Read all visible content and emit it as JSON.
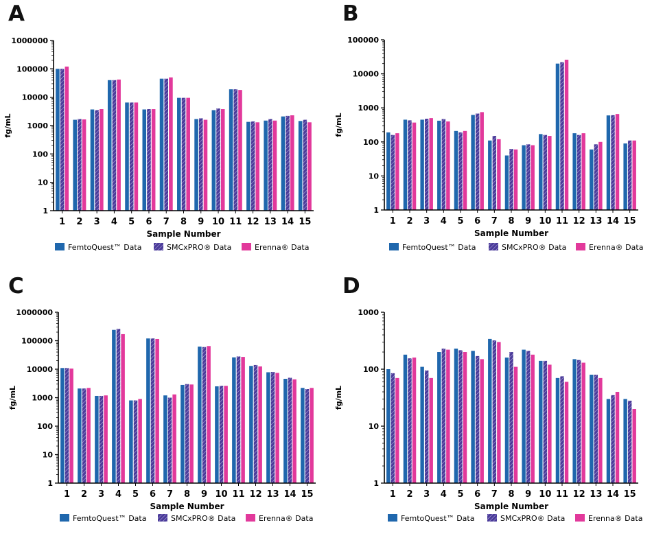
{
  "colors": {
    "femtoquest": "#1f67ad",
    "smcxpro": "#4b3b9a",
    "erenna": "#e2399b"
  },
  "chart_data": [
    {
      "panel": "A",
      "type": "bar",
      "yscale": "log",
      "ylim": [
        1,
        1000000
      ],
      "yticks": [
        "1",
        "10",
        "100",
        "1000",
        "10000",
        "100000",
        "1000000"
      ],
      "ylabel": "fg/mL",
      "xlabel": "Sample Number",
      "categories": [
        "1",
        "2",
        "3",
        "4",
        "5",
        "6",
        "7",
        "8",
        "9",
        "10",
        "11",
        "12",
        "13",
        "14",
        "15"
      ],
      "series": [
        {
          "name": "FemtoQuest™ Data",
          "values": [
            100000,
            1600,
            3700,
            40000,
            6500,
            3700,
            45000,
            9500,
            1700,
            3500,
            19000,
            1350,
            1500,
            2100,
            1450
          ]
        },
        {
          "name": "SMCxPRO® Data",
          "values": [
            100000,
            1700,
            3500,
            40000,
            6500,
            3800,
            45000,
            9500,
            1800,
            4000,
            19000,
            1400,
            1700,
            2200,
            1600
          ]
        },
        {
          "name": "Erenna® Data",
          "values": [
            120000,
            1650,
            3800,
            42000,
            6500,
            3800,
            50000,
            9500,
            1600,
            3800,
            18000,
            1300,
            1500,
            2300,
            1300
          ]
        }
      ]
    },
    {
      "panel": "B",
      "type": "bar",
      "yscale": "log",
      "ylim": [
        1,
        100000
      ],
      "yticks": [
        "1",
        "10",
        "100",
        "1000",
        "10000",
        "100000"
      ],
      "ylabel": "fg/mL",
      "xlabel": "Sample Number",
      "categories": [
        "1",
        "2",
        "3",
        "4",
        "5",
        "6",
        "7",
        "8",
        "9",
        "10",
        "11",
        "12",
        "13",
        "14",
        "15"
      ],
      "series": [
        {
          "name": "FemtoQuest™ Data",
          "values": [
            190,
            450,
            450,
            420,
            210,
            620,
            110,
            40,
            80,
            170,
            20000,
            180,
            60,
            600,
            90
          ]
        },
        {
          "name": "SMCxPRO® Data",
          "values": [
            160,
            430,
            480,
            470,
            190,
            680,
            150,
            62,
            85,
            160,
            22000,
            160,
            85,
            610,
            110
          ]
        },
        {
          "name": "Erenna® Data",
          "values": [
            180,
            370,
            500,
            400,
            210,
            750,
            120,
            60,
            80,
            150,
            26000,
            180,
            100,
            660,
            110
          ]
        }
      ]
    },
    {
      "panel": "C",
      "type": "bar",
      "yscale": "log",
      "ylim": [
        1,
        1000000
      ],
      "yticks": [
        "1",
        "10",
        "100",
        "1000",
        "10000",
        "100000",
        "1000000"
      ],
      "ylabel": "fg/mL",
      "xlabel": "Sample Number",
      "categories": [
        "1",
        "2",
        "3",
        "4",
        "5",
        "6",
        "7",
        "8",
        "9",
        "10",
        "11",
        "12",
        "13",
        "14",
        "15"
      ],
      "series": [
        {
          "name": "FemtoQuest™ Data",
          "values": [
            11000,
            2100,
            1150,
            240000,
            800,
            120000,
            1200,
            2800,
            62000,
            2500,
            26000,
            13000,
            7800,
            4600,
            2200
          ]
        },
        {
          "name": "SMCxPRO® Data",
          "values": [
            11000,
            2100,
            1150,
            260000,
            800,
            120000,
            1000,
            3000,
            60000,
            2600,
            28000,
            14000,
            8000,
            5000,
            2000
          ]
        },
        {
          "name": "Erenna® Data",
          "values": [
            10500,
            2200,
            1200,
            170000,
            900,
            115000,
            1300,
            2900,
            65000,
            2600,
            27000,
            12500,
            7400,
            4400,
            2200
          ]
        }
      ]
    },
    {
      "panel": "D",
      "type": "bar",
      "yscale": "log",
      "ylim": [
        1,
        1000
      ],
      "yticks": [
        "1",
        "10",
        "100",
        "1000"
      ],
      "ylabel": "fg/mL",
      "xlabel": "Sample Number",
      "categories": [
        "1",
        "2",
        "3",
        "4",
        "5",
        "6",
        "7",
        "8",
        "9",
        "10",
        "11",
        "12",
        "13",
        "14",
        "15"
      ],
      "series": [
        {
          "name": "FemtoQuest™ Data",
          "values": [
            100,
            180,
            110,
            200,
            230,
            210,
            340,
            160,
            220,
            140,
            70,
            150,
            80,
            30,
            30
          ]
        },
        {
          "name": "SMCxPRO® Data",
          "values": [
            85,
            155,
            95,
            230,
            215,
            170,
            320,
            200,
            210,
            140,
            75,
            145,
            80,
            35,
            28
          ]
        },
        {
          "name": "Erenna® Data",
          "values": [
            70,
            160,
            70,
            220,
            200,
            150,
            300,
            110,
            180,
            120,
            60,
            130,
            70,
            40,
            20
          ]
        }
      ]
    }
  ]
}
